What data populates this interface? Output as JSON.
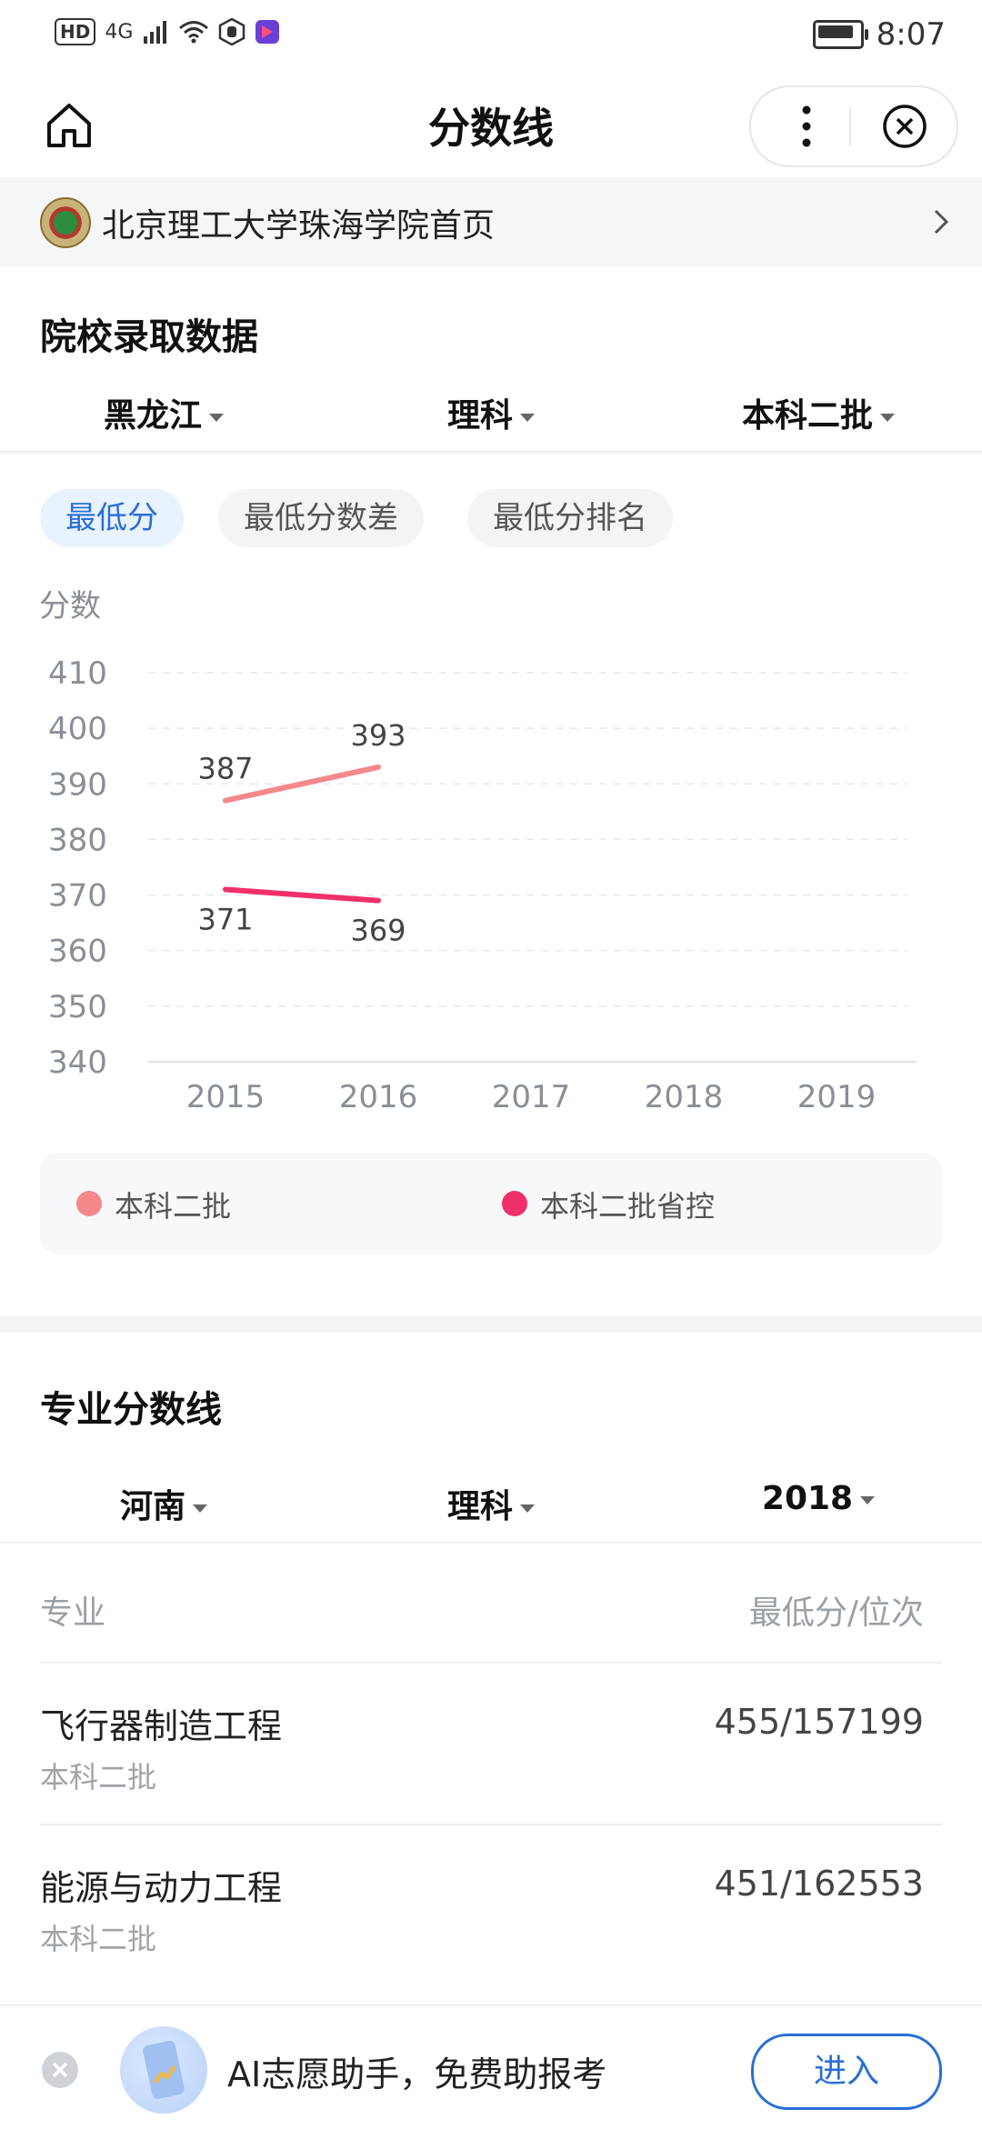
{
  "status_bar": {
    "network": [
      "HD",
      "4G"
    ],
    "time": "8:07"
  },
  "header": {
    "title": "分数线"
  },
  "school_banner": {
    "name": "北京理工大学珠海学院首页"
  },
  "admission_section": {
    "title": "院校录取数据",
    "filters": [
      "黑龙江",
      "理科",
      "本科二批"
    ],
    "tabs": [
      {
        "label": "最低分",
        "active": true
      },
      {
        "label": "最低分数差",
        "active": false
      },
      {
        "label": "最低分排名",
        "active": false
      }
    ]
  },
  "chart_data": {
    "type": "line",
    "ylabel": "分数",
    "ylim": [
      340,
      410
    ],
    "yticks": [
      410,
      400,
      390,
      380,
      370,
      360,
      350,
      340
    ],
    "categories": [
      "2015",
      "2016",
      "2017",
      "2018",
      "2019"
    ],
    "grid": true,
    "legend_position": "bottom",
    "series": [
      {
        "name": "本科二批",
        "color": "#f4888a",
        "values": [
          387,
          393,
          null,
          null,
          null
        ]
      },
      {
        "name": "本科二批省控",
        "color": "#f0306a",
        "values": [
          371,
          369,
          null,
          null,
          null
        ]
      }
    ]
  },
  "major_section": {
    "title": "专业分数线",
    "filters": [
      "河南",
      "理科",
      "2018"
    ],
    "columns": [
      "专业",
      "最低分/位次"
    ],
    "rows": [
      {
        "major": "飞行器制造工程",
        "batch": "本科二批",
        "score": "455/157199"
      },
      {
        "major": "能源与动力工程",
        "batch": "本科二批",
        "score": "451/162553"
      }
    ]
  },
  "bottom_bar": {
    "text": "AI志愿助手，免费助报考",
    "button": "进入"
  }
}
